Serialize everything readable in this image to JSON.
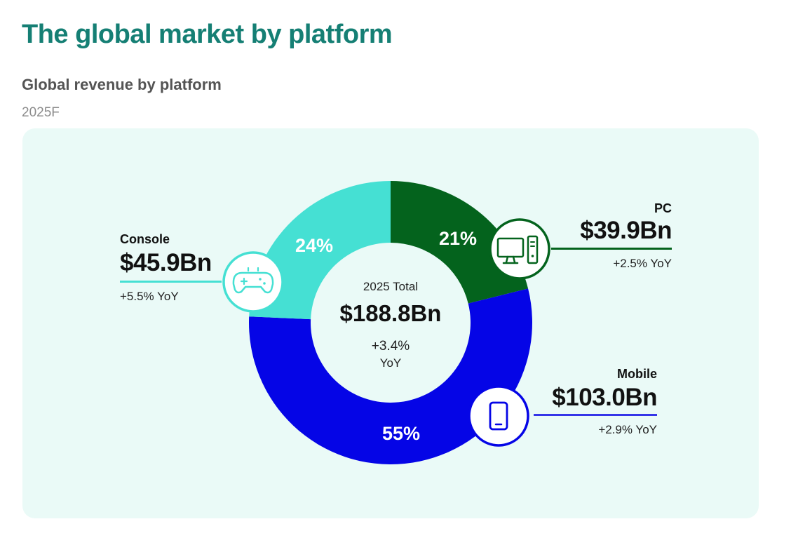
{
  "header": {
    "title": "The global market by platform",
    "subtitle": "Global revenue by platform",
    "period": "2025F"
  },
  "center": {
    "label": "2025 Total",
    "value": "$188.8Bn",
    "yoy_line1": "+3.4%",
    "yoy_line2": "YoY"
  },
  "colors": {
    "title": "#157f74",
    "panel": "#eafaf7",
    "pc": "#04631d",
    "mobile": "#0505e6",
    "console": "#45e0d3"
  },
  "segments": {
    "pc": {
      "name": "PC",
      "value": "$39.9Bn",
      "yoy": "+2.5% YoY",
      "percent_label": "21%",
      "icon": "desktop-computer-icon"
    },
    "mobile": {
      "name": "Mobile",
      "value": "$103.0Bn",
      "yoy": "+2.9% YoY",
      "percent_label": "55%",
      "icon": "smartphone-icon"
    },
    "console": {
      "name": "Console",
      "value": "$45.9Bn",
      "yoy": "+5.5% YoY",
      "percent_label": "24%",
      "icon": "gamepad-icon"
    }
  },
  "chart_data": {
    "type": "pie",
    "donut": true,
    "title": "Global revenue by platform",
    "subtitle": "2025F",
    "unit": "$Bn",
    "total": 188.8,
    "total_yoy_percent": 3.4,
    "slices": [
      {
        "name": "PC",
        "value": 39.9,
        "percent": 21,
        "yoy_percent": 2.5,
        "color": "#04631d"
      },
      {
        "name": "Mobile",
        "value": 103.0,
        "percent": 55,
        "yoy_percent": 2.9,
        "color": "#0505e6"
      },
      {
        "name": "Console",
        "value": 45.9,
        "percent": 24,
        "yoy_percent": 5.5,
        "color": "#45e0d3"
      }
    ]
  }
}
